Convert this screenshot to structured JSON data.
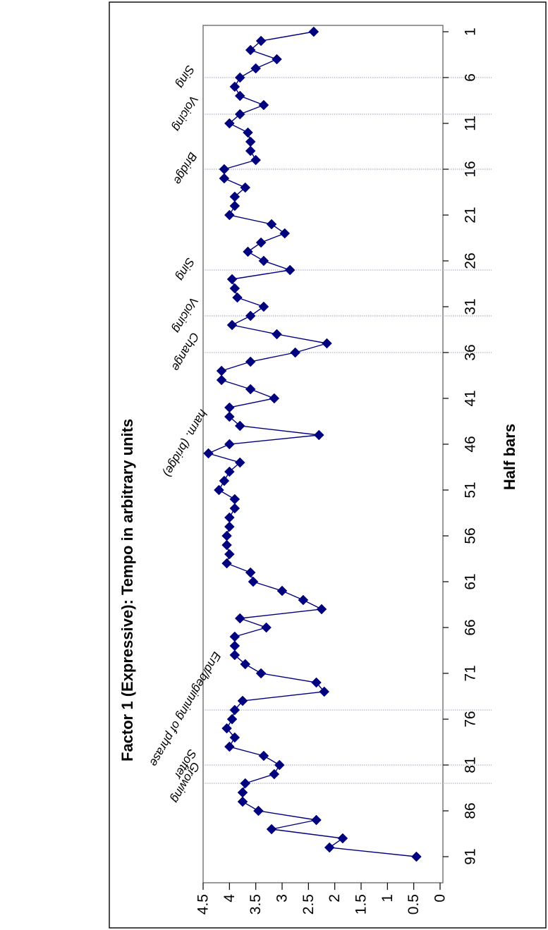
{
  "chart_data": {
    "type": "line",
    "title": "Factor 1 (Expressive): Tempo in arbitrary units",
    "xlabel": "Half bars",
    "ylabel": "",
    "orientation": "rotated 90 degrees clockwise (x axis runs top-to-bottom, y axis runs right-to-left)",
    "xlim": [
      1,
      91
    ],
    "ylim": [
      0,
      4.5
    ],
    "x_ticks": [
      "1",
      "6",
      "11",
      "16",
      "21",
      "26",
      "31",
      "36",
      "41",
      "46",
      "51",
      "56",
      "61",
      "66",
      "71",
      "76",
      "81",
      "86",
      "91"
    ],
    "y_ticks": [
      "0",
      "0.5",
      "1",
      "1.5",
      "2",
      "2.5",
      "3",
      "3.5",
      "4",
      "4.5"
    ],
    "grid": false,
    "legend": "none",
    "series_color": "#00007f",
    "marker": "diamond",
    "x": [
      1,
      2,
      3,
      4,
      5,
      6,
      7,
      8,
      9,
      10,
      11,
      12,
      13,
      14,
      15,
      16,
      17,
      18,
      19,
      20,
      21,
      22,
      23,
      24,
      25,
      26,
      27,
      28,
      29,
      30,
      31,
      32,
      33,
      34,
      35,
      36,
      37,
      38,
      39,
      40,
      41,
      42,
      43,
      44,
      45,
      46,
      47,
      48,
      49,
      50,
      51,
      52,
      53,
      54,
      55,
      56,
      57,
      58,
      59,
      60,
      61,
      62,
      63,
      64,
      65,
      66,
      67,
      68,
      69,
      70,
      71,
      72,
      73,
      74,
      75,
      76,
      77,
      78,
      79,
      80,
      81,
      82,
      83,
      84,
      85,
      86,
      87,
      88,
      89,
      90,
      91
    ],
    "values": [
      2.4,
      3.4,
      3.6,
      3.1,
      3.5,
      3.8,
      3.9,
      3.8,
      3.35,
      3.8,
      4.0,
      3.65,
      3.6,
      3.6,
      3.5,
      4.1,
      4.1,
      3.7,
      3.9,
      3.9,
      4.0,
      3.2,
      2.95,
      3.4,
      3.65,
      3.35,
      2.85,
      3.95,
      3.9,
      3.85,
      3.35,
      3.6,
      3.95,
      3.1,
      2.15,
      2.75,
      3.6,
      4.15,
      4.15,
      3.6,
      3.15,
      4.0,
      4.0,
      3.8,
      2.3,
      4.0,
      4.4,
      3.8,
      4.0,
      4.1,
      4.2,
      3.9,
      3.9,
      4.0,
      4.0,
      4.05,
      4.05,
      4.0,
      4.05,
      3.6,
      3.55,
      3.0,
      2.6,
      2.25,
      3.8,
      3.3,
      3.9,
      3.9,
      3.9,
      3.7,
      3.4,
      2.35,
      2.2,
      3.75,
      3.9,
      3.95,
      4.05,
      3.9,
      4.0,
      3.35,
      3.05,
      3.15,
      3.7,
      3.75,
      3.75,
      3.45,
      2.35,
      3.2,
      1.85,
      2.1,
      0.45
    ],
    "annotations": [
      {
        "text": "Sing",
        "x": 6
      },
      {
        "text": "Voicing",
        "x": 10
      },
      {
        "text": "Bridge",
        "x": 16
      },
      {
        "text": "Sing",
        "x": 27
      },
      {
        "text": "Voicing",
        "x": 32
      },
      {
        "text": "Change",
        "x": 36
      },
      {
        "text": "harm.  (bridge)",
        "x": 46
      },
      {
        "text": "End/beginning of phrase",
        "x": 75
      },
      {
        "text": "Softer",
        "x": 81
      },
      {
        "text": "Growing",
        "x": 83
      }
    ],
    "marker_lines_x": [
      6,
      10,
      16,
      27,
      32,
      36,
      75,
      81,
      83
    ]
  }
}
